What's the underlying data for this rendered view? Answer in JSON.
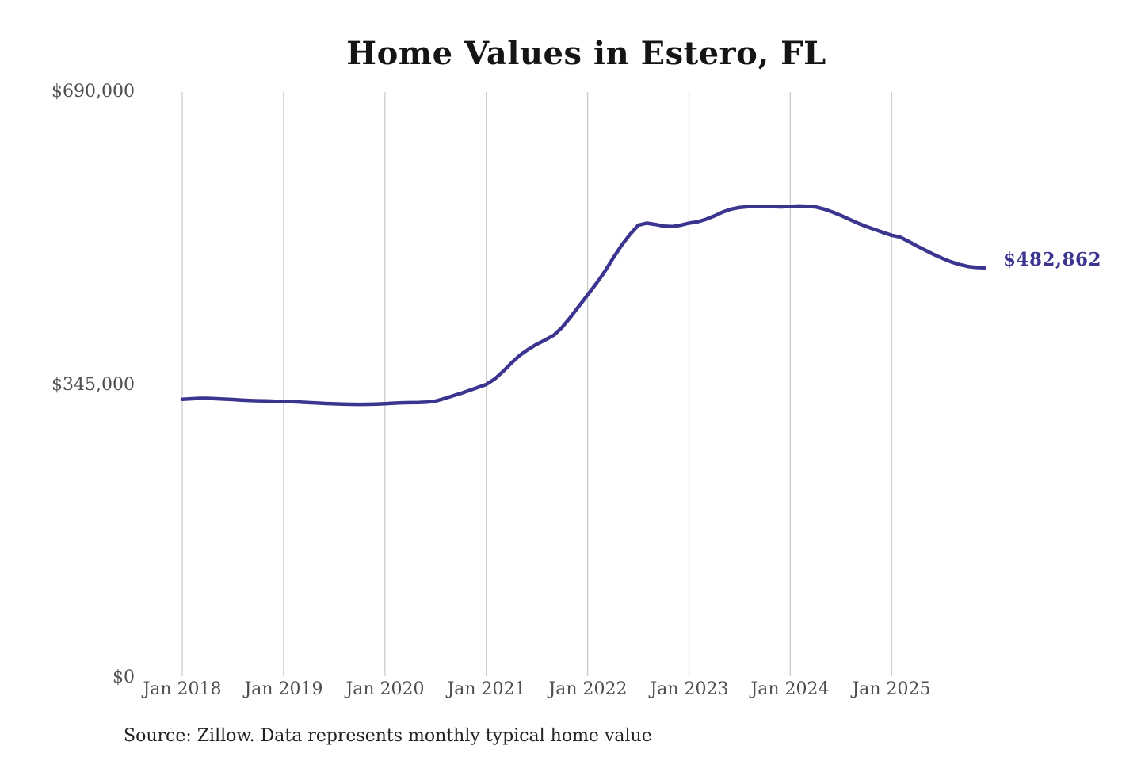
{
  "chart_data": {
    "type": "line",
    "title": "Home Values in Estero, FL",
    "series_name": "Typical home value",
    "frequency": "monthly",
    "start_month": "Jan 2018",
    "end_month": "Dec 2025",
    "x_ticks": [
      "Jan 2018",
      "Jan 2019",
      "Jan 2020",
      "Jan 2021",
      "Jan 2022",
      "Jan 2023",
      "Jan 2024",
      "Jan 2025"
    ],
    "y_ticks": [
      "$0",
      "$345,000",
      "$690,000"
    ],
    "ylim": [
      0,
      690000
    ],
    "grid": "vertical-only",
    "legend": "none",
    "end_label": "$482,862",
    "latest_value": 482862,
    "line_color": "#3b3590",
    "grid_color": "#cccccc",
    "values": [
      328000,
      328600,
      329100,
      329100,
      328700,
      328200,
      327700,
      327100,
      326600,
      326200,
      326000,
      325700,
      325500,
      325100,
      324600,
      324100,
      323600,
      323100,
      322700,
      322300,
      322100,
      322000,
      322100,
      322400,
      322900,
      323400,
      323900,
      324100,
      324200,
      324600,
      325900,
      328800,
      331900,
      335000,
      338500,
      342000,
      345500,
      352000,
      361000,
      371000,
      380000,
      387000,
      393000,
      398000,
      403500,
      413000,
      425000,
      438000,
      451000,
      464000,
      478000,
      494000,
      509000,
      522000,
      533000,
      535500,
      534000,
      532000,
      531500,
      533000,
      535500,
      537000,
      540000,
      544000,
      548500,
      552000,
      554000,
      554900,
      555300,
      555400,
      554800,
      554600,
      555200,
      555600,
      555400,
      554500,
      552000,
      548500,
      544500,
      540000,
      535500,
      531500,
      528000,
      524500,
      521200,
      519000,
      514000,
      508500,
      503500,
      498500,
      494000,
      490000,
      486800,
      484500,
      483300,
      482862
    ]
  },
  "footer": {
    "source": "Source: Zillow. Data represents monthly typical home value"
  }
}
